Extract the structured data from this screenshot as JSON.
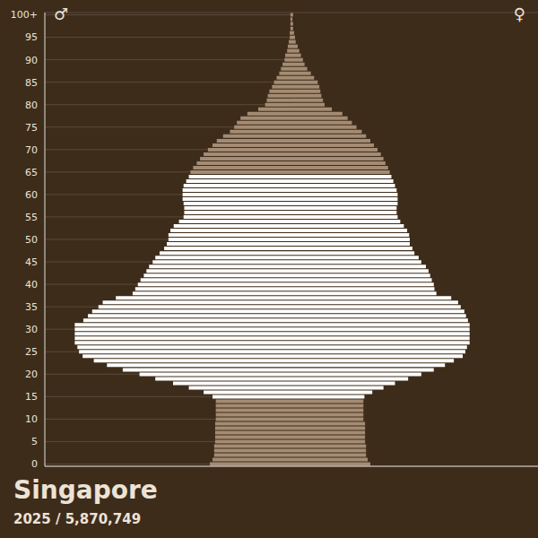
{
  "chart_data": {
    "type": "bar",
    "orientation": "horizontal",
    "title": "Singapore",
    "subtitle": "2025 / 5,870,749",
    "categories": [
      "0",
      null,
      null,
      null,
      null,
      "5",
      null,
      null,
      null,
      null,
      "10",
      null,
      null,
      null,
      null,
      "15",
      null,
      null,
      null,
      null,
      "20",
      null,
      null,
      null,
      null,
      "25",
      null,
      null,
      null,
      null,
      "30",
      null,
      null,
      null,
      null,
      "35",
      null,
      null,
      null,
      null,
      "40",
      null,
      null,
      null,
      null,
      "45",
      null,
      null,
      null,
      null,
      "50",
      null,
      null,
      null,
      null,
      "55",
      null,
      null,
      null,
      null,
      "60",
      null,
      null,
      null,
      null,
      "65",
      null,
      null,
      null,
      null,
      "70",
      null,
      null,
      null,
      null,
      "75",
      null,
      null,
      null,
      null,
      "80",
      null,
      null,
      null,
      null,
      "85",
      null,
      null,
      null,
      null,
      "90",
      null,
      null,
      null,
      null,
      "95",
      null,
      null,
      null,
      null,
      "100+"
    ],
    "series": [
      {
        "name": "♂",
        "values": [
          24800,
          24000,
          23500,
          23500,
          23500,
          23200,
          23200,
          23200,
          23200,
          23200,
          23000,
          23000,
          23000,
          23000,
          23000,
          24000,
          26700,
          31200,
          36000,
          41400,
          46200,
          51300,
          56100,
          60100,
          63500,
          64600,
          65100,
          65900,
          65900,
          65900,
          65900,
          65900,
          63300,
          61900,
          60600,
          58700,
          57400,
          53400,
          48300,
          47500,
          46700,
          45900,
          44900,
          44100,
          43300,
          42200,
          41400,
          40100,
          38700,
          37900,
          37400,
          37400,
          36800,
          35800,
          34200,
          32800,
          32600,
          32600,
          32800,
          33100,
          33100,
          33100,
          32800,
          32000,
          31200,
          30700,
          29900,
          28800,
          27800,
          26700,
          25400,
          24000,
          22700,
          20800,
          18700,
          17400,
          16600,
          15500,
          13400,
          10100,
          8000,
          7500,
          7200,
          6700,
          5900,
          5300,
          4500,
          3700,
          3200,
          2700,
          2100,
          1900,
          1300,
          1100,
          800,
          500,
          500,
          300,
          300,
          300,
          300
        ]
      },
      {
        "name": "♀",
        "values": [
          24000,
          23200,
          22700,
          22700,
          22700,
          22400,
          22400,
          22400,
          22400,
          22400,
          21900,
          21900,
          21900,
          21900,
          21900,
          22200,
          24600,
          28000,
          31500,
          35500,
          39500,
          43300,
          46700,
          49400,
          52100,
          52900,
          53400,
          54200,
          54200,
          54200,
          54200,
          54200,
          53700,
          53100,
          52600,
          51500,
          50700,
          48600,
          44100,
          43500,
          43300,
          42700,
          42200,
          41700,
          40900,
          39500,
          38700,
          37400,
          36800,
          36000,
          36000,
          35800,
          35200,
          34200,
          33100,
          32300,
          32000,
          32000,
          32300,
          32300,
          32300,
          32000,
          31500,
          31000,
          30400,
          29900,
          29400,
          28600,
          28000,
          27200,
          26200,
          25100,
          24000,
          22700,
          21400,
          19800,
          18400,
          17100,
          15500,
          12300,
          10100,
          9600,
          9100,
          8800,
          8500,
          8000,
          6900,
          5900,
          4800,
          4000,
          3500,
          2900,
          2400,
          1900,
          1300,
          1100,
          800,
          500,
          500,
          300,
          500
        ]
      }
    ],
    "colors": [
      "#a48b73",
      "#a48b73",
      "#a48b73",
      "#a48b73",
      "#a48b73",
      "#a48b73",
      "#a48b73",
      "#a48b73",
      "#a48b73",
      "#a48b73",
      "#a48b73",
      "#a48b73",
      "#a48b73",
      "#a48b73",
      "#a48b73",
      "#ffffff",
      "#ffffff",
      "#ffffff",
      "#ffffff",
      "#ffffff",
      "#ffffff",
      "#ffffff",
      "#ffffff",
      "#ffffff",
      "#ffffff",
      "#ffffff",
      "#ffffff",
      "#ffffff",
      "#ffffff",
      "#ffffff",
      "#ffffff",
      "#ffffff",
      "#ffffff",
      "#ffffff",
      "#ffffff",
      "#ffffff",
      "#ffffff",
      "#ffffff",
      "#ffffff",
      "#ffffff",
      "#ffffff",
      "#ffffff",
      "#ffffff",
      "#ffffff",
      "#ffffff",
      "#ffffff",
      "#ffffff",
      "#ffffff",
      "#ffffff",
      "#ffffff",
      "#ffffff",
      "#ffffff",
      "#ffffff",
      "#ffffff",
      "#ffffff",
      "#ffffff",
      "#ffffff",
      "#ffffff",
      "#ffffff",
      "#ffffff",
      "#ffffff",
      "#ffffff",
      "#ffffff",
      "#ffffff",
      "#ffffff",
      "#a48b73",
      "#a48b73",
      "#a48b73",
      "#a48b73",
      "#a48b73",
      "#a48b73",
      "#a48b73",
      "#a48b73",
      "#a48b73",
      "#a48b73",
      "#a48b73",
      "#a48b73",
      "#a48b73",
      "#a48b73",
      "#a48b73",
      "#a48b73",
      "#a48b73",
      "#a48b73",
      "#a48b73",
      "#a48b73",
      "#a48b73",
      "#a48b73",
      "#a48b73",
      "#a48b73",
      "#a48b73",
      "#a48b73",
      "#a48b73",
      "#a48b73",
      "#a48b73",
      "#a48b73",
      "#a48b73",
      "#a48b73",
      "#a48b73",
      "#a48b73",
      "#a48b73",
      "#a48b73"
    ],
    "xlim": [
      0,
      75000
    ],
    "grid": true,
    "tick_labels": "y"
  }
}
